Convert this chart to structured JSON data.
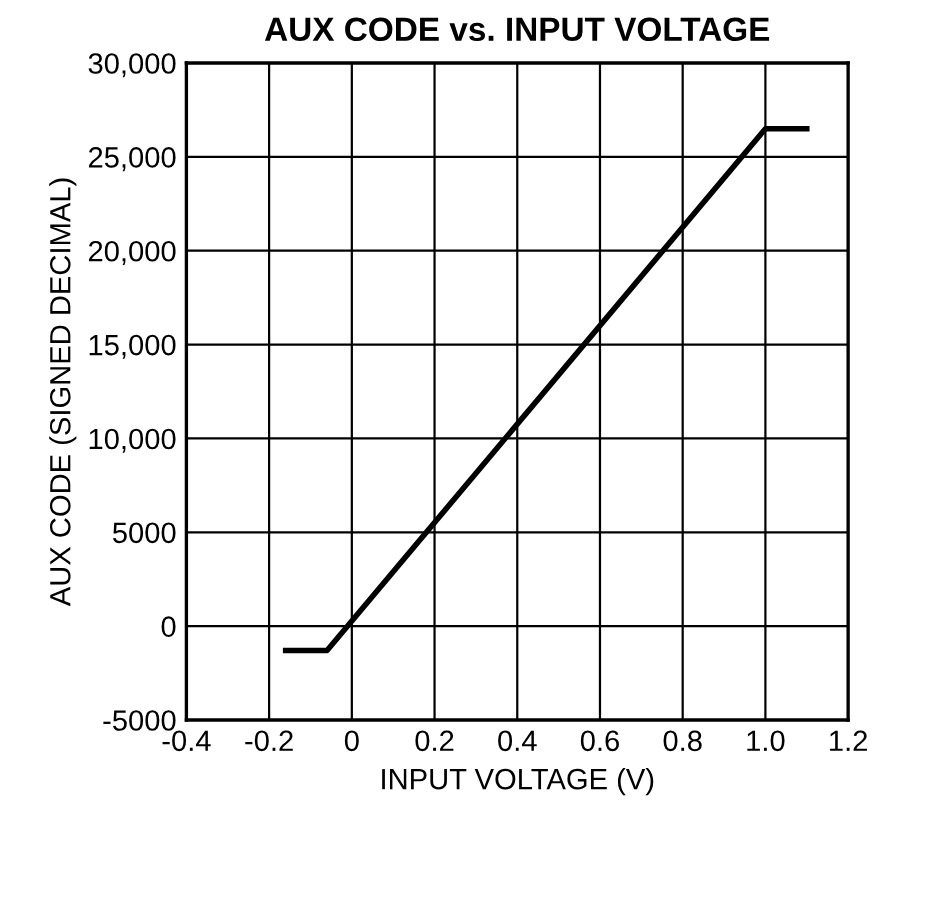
{
  "chart_data": {
    "type": "line",
    "title": "AUX CODE vs. INPUT VOLTAGE",
    "xlabel": "INPUT VOLTAGE (V)",
    "ylabel": "AUX CODE (SIGNED DECIMAL)",
    "series": [
      {
        "color": "#000000",
        "x": [
          -0.16,
          -0.06,
          1.0,
          1.1
        ],
        "values": [
          -1300,
          -1300,
          26500,
          26500
        ]
      }
    ],
    "xlim": [
      -0.4,
      1.2
    ],
    "xticks": [
      -0.4,
      -0.2,
      0,
      0.2,
      0.4,
      0.6,
      0.8,
      {
        "value": 1.0,
        "label": "1.0"
      },
      1.2
    ],
    "ylim": [
      -5000,
      30000
    ],
    "yticks": [
      -5000,
      0,
      5000,
      {
        "value": 10000,
        "label": "10,000"
      },
      {
        "value": 15000,
        "label": "15,000"
      },
      {
        "value": 20000,
        "label": "20,000"
      },
      {
        "value": 25000,
        "label": "25,000"
      },
      {
        "value": 30000,
        "label": "30,000"
      }
    ],
    "grid": true,
    "legend": false,
    "marker": "none",
    "line_style": "solid"
  }
}
